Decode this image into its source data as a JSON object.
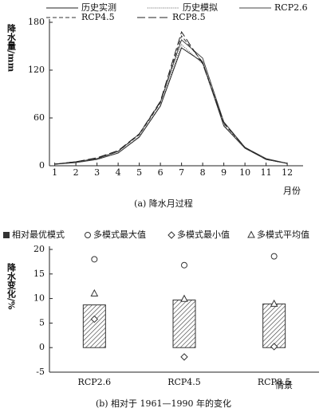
{
  "chart_data": [
    {
      "type": "line",
      "caption": "(a) 降水月过程",
      "y_label": "降水量/mm",
      "x_label": "月份",
      "x": [
        1,
        2,
        3,
        4,
        5,
        6,
        7,
        8,
        9,
        10,
        11,
        12
      ],
      "xlim": [
        0.75,
        12.75
      ],
      "xticks": [
        1,
        2,
        3,
        4,
        5,
        6,
        7,
        8,
        9,
        10,
        11,
        12
      ],
      "ylim": [
        0,
        180
      ],
      "yticks": [
        0,
        60,
        120,
        180
      ],
      "series": [
        {
          "name": "历史实测",
          "color": "#222222",
          "style": "solid",
          "values": [
            2,
            4,
            8,
            16,
            36,
            75,
            148,
            130,
            50,
            22,
            8,
            3
          ]
        },
        {
          "name": "历史模拟",
          "color": "#555555",
          "style": "dotted",
          "values": [
            2,
            4,
            8,
            16,
            37,
            76,
            152,
            128,
            51,
            22,
            8,
            3
          ]
        },
        {
          "name": "RCP2.6",
          "color": "#444444",
          "style": "solid",
          "values": [
            2,
            5,
            9,
            18,
            40,
            80,
            158,
            135,
            55,
            23,
            9,
            3
          ]
        },
        {
          "name": "RCP4.5",
          "color": "#333333",
          "style": "dashed",
          "values": [
            2,
            5,
            9,
            18,
            39,
            79,
            163,
            130,
            53,
            23,
            8,
            3
          ]
        },
        {
          "name": "RCP8.5",
          "color": "#222222",
          "style": "longdash",
          "values": [
            2,
            5,
            10,
            19,
            40,
            81,
            168,
            128,
            54,
            23,
            8,
            3
          ]
        }
      ]
    },
    {
      "type": "bar",
      "caption": "(b) 相对于 1961—1990 年的变化",
      "y_label": "降水变化/%",
      "x_label": "情景",
      "categories": [
        "RCP2.6",
        "RCP4.5",
        "RCP8.5"
      ],
      "ylim": [
        -5,
        20
      ],
      "yticks": [
        -5,
        0,
        5,
        10,
        15,
        20
      ],
      "series": [
        {
          "name": "相对最优模式",
          "color": "#333333",
          "marker": "bar",
          "values": [
            8.7,
            9.7,
            8.9
          ]
        },
        {
          "name": "多模式最大值",
          "color": "#333333",
          "marker": "circle",
          "values": [
            18,
            16.8,
            18.6
          ]
        },
        {
          "name": "多模式最小值",
          "color": "#333333",
          "marker": "diamond",
          "values": [
            5.8,
            -1.9,
            0.2
          ]
        },
        {
          "name": "多模式平均值",
          "color": "#333333",
          "marker": "triangle",
          "values": [
            11,
            9.9,
            8.9
          ]
        }
      ]
    }
  ]
}
